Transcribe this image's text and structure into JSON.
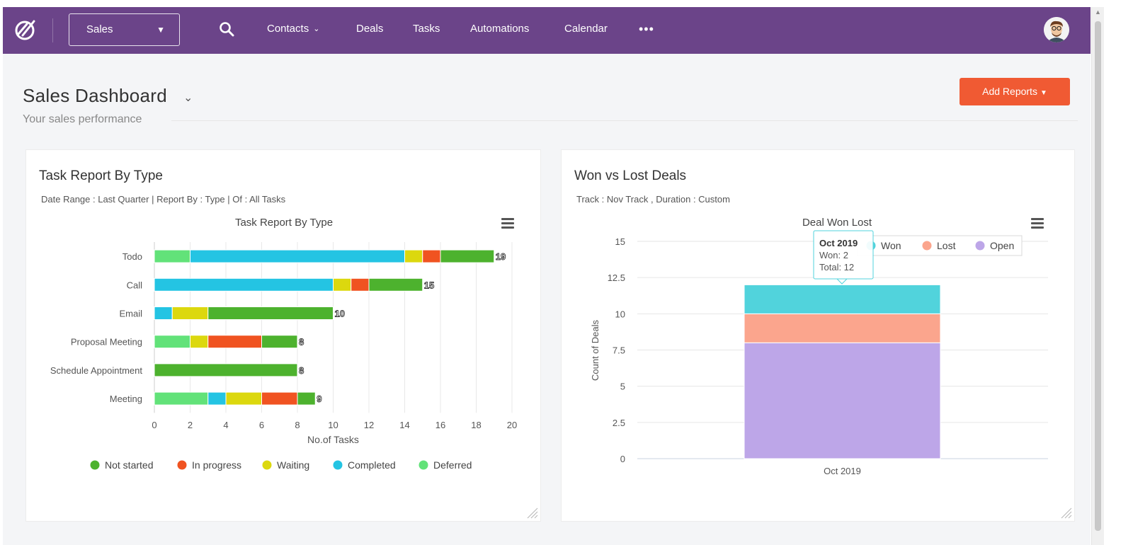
{
  "nav": {
    "pipeline": "Sales",
    "items": [
      {
        "label": "Contacts",
        "has_dropdown": true
      },
      {
        "label": "Deals",
        "has_dropdown": false
      },
      {
        "label": "Tasks",
        "has_dropdown": false
      },
      {
        "label": "Automations",
        "has_dropdown": false
      },
      {
        "label": "Calendar",
        "has_dropdown": false
      }
    ],
    "more": "•••"
  },
  "header": {
    "title": "Sales Dashboard",
    "subtitle": "Your sales performance",
    "add_reports_label": "Add Reports"
  },
  "cards": {
    "task_report": {
      "title": "Task Report By Type",
      "meta": "Date Range : Last Quarter | Report By : Type | Of : All Tasks"
    },
    "won_lost": {
      "title": "Won vs Lost Deals",
      "meta": "Track : Nov Track ,  Duration : Custom"
    }
  },
  "chart_data": [
    {
      "type": "bar",
      "orientation": "horizontal",
      "stacked": true,
      "title": "Task Report By Type",
      "xlabel": "No.of Tasks",
      "ylabel": "",
      "xlim": [
        0,
        20
      ],
      "x_ticks": [
        0,
        2,
        4,
        6,
        8,
        10,
        12,
        14,
        16,
        18,
        20
      ],
      "categories": [
        "Todo",
        "Call",
        "Email",
        "Proposal Meeting",
        "Schedule Appointment",
        "Meeting"
      ],
      "series": [
        {
          "name": "Deferred",
          "color": "#62e279",
          "values": [
            2,
            0,
            0,
            2,
            0,
            3
          ]
        },
        {
          "name": "Completed",
          "color": "#24c4e3",
          "values": [
            12,
            10,
            1,
            0,
            0,
            1
          ]
        },
        {
          "name": "Waiting",
          "color": "#dcd80e",
          "values": [
            1,
            1,
            2,
            1,
            0,
            2
          ]
        },
        {
          "name": "In progress",
          "color": "#f05321",
          "values": [
            1,
            1,
            0,
            3,
            0,
            2
          ]
        },
        {
          "name": "Not started",
          "color": "#4db22e",
          "values": [
            3,
            3,
            7,
            2,
            8,
            1
          ]
        }
      ],
      "totals": [
        19,
        15,
        10,
        8,
        8,
        9
      ],
      "legend_order": [
        "Not started",
        "In progress",
        "Waiting",
        "Completed",
        "Deferred"
      ],
      "legend_position": "bottom"
    },
    {
      "type": "bar",
      "orientation": "vertical",
      "stacked": true,
      "title": "Deal Won Lost",
      "xlabel": "",
      "ylabel": "Count of Deals",
      "ylim": [
        0,
        15
      ],
      "y_ticks": [
        0,
        2.5,
        5,
        7.5,
        10,
        12.5,
        15
      ],
      "categories": [
        "Oct 2019"
      ],
      "series": [
        {
          "name": "Open",
          "color": "#bda6e8",
          "values": [
            8
          ]
        },
        {
          "name": "Lost",
          "color": "#fba58d",
          "values": [
            2
          ]
        },
        {
          "name": "Won",
          "color": "#51d3dc",
          "values": [
            2
          ]
        }
      ],
      "legend_order": [
        "Won",
        "Lost",
        "Open"
      ],
      "legend_position": "top-right",
      "tooltip": {
        "title": "Oct 2019",
        "lines": [
          "Won: 2",
          "Total: 12"
        ]
      }
    }
  ]
}
